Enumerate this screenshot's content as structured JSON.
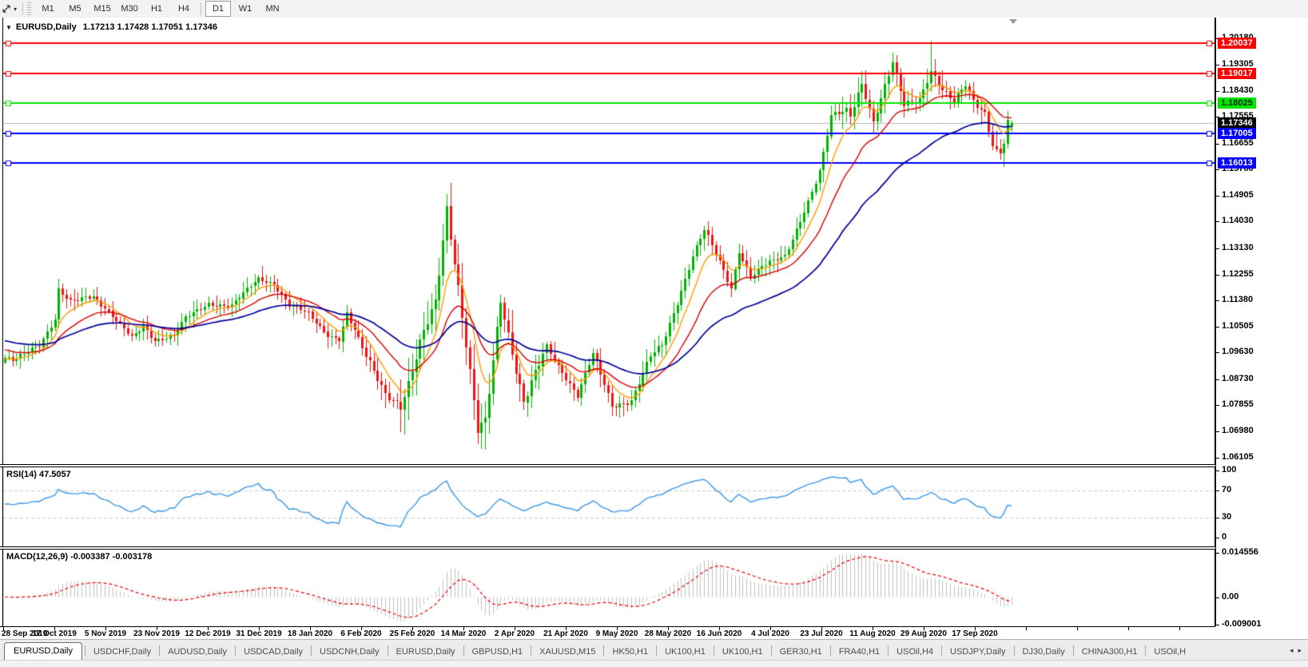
{
  "toolbar": {
    "tool_caret": "▾",
    "timeframes": [
      "M1",
      "M5",
      "M15",
      "M30",
      "H1",
      "H4",
      "D1",
      "W1",
      "MN"
    ],
    "active": "D1"
  },
  "chart_header": {
    "collapse_arrow": "▼",
    "symbol": "EURUSD,Daily",
    "ohlc": "1.17213 1.17428 1.17051 1.17346"
  },
  "chart_data": {
    "type": "candlestick",
    "symbol": "EURUSD",
    "period": "Daily",
    "last_bar": {
      "open": 1.17213,
      "high": 1.17428,
      "low": 1.17051,
      "close": 1.17346
    },
    "visible_price_range": {
      "top": 1.2089,
      "bottom": 1.0588
    },
    "bars_visible": 263,
    "colors": {
      "bull": "#00b300",
      "bear": "#f01414",
      "ma_fast": "#ff9900",
      "ma_mid": "#d40000",
      "ma_slow": "#000099",
      "price_line": "#b8b8b8"
    },
    "horizontal_lines": [
      {
        "price": 1.20037,
        "color": "#ff0000"
      },
      {
        "price": 1.19017,
        "color": "#ff0000"
      },
      {
        "price": 1.18025,
        "color": "#00e600"
      },
      {
        "price": 1.17005,
        "color": "#0000ff"
      },
      {
        "price": 1.16013,
        "color": "#0000ff"
      }
    ],
    "current_price_line": {
      "price": 1.17346,
      "color": "#b8b8b8"
    },
    "price_axis_ticks": [
      {
        "label": "1.20180",
        "value": 1.2018
      },
      {
        "label": "1.19305",
        "value": 1.19305
      },
      {
        "label": "1.18430",
        "value": 1.1843
      },
      {
        "label": "1.17555",
        "value": 1.17555
      },
      {
        "label": "1.16655",
        "value": 1.16655
      },
      {
        "label": "1.15780",
        "value": 1.1578
      },
      {
        "label": "1.14905",
        "value": 1.14905
      },
      {
        "label": "1.14030",
        "value": 1.1403
      },
      {
        "label": "1.13130",
        "value": 1.1313
      },
      {
        "label": "1.12255",
        "value": 1.12255
      },
      {
        "label": "1.11380",
        "value": 1.1138
      },
      {
        "label": "1.10505",
        "value": 1.10505
      },
      {
        "label": "1.09630",
        "value": 1.0963
      },
      {
        "label": "1.08730",
        "value": 1.0873
      },
      {
        "label": "1.07855",
        "value": 1.07855
      },
      {
        "label": "1.06980",
        "value": 1.0698
      },
      {
        "label": "1.06105",
        "value": 1.06105
      }
    ],
    "price_badges": [
      {
        "label": "1.20037",
        "value": 1.20037,
        "bg": "#ff0000",
        "fg": "#ffffff"
      },
      {
        "label": "1.19017",
        "value": 1.19017,
        "bg": "#ff0000",
        "fg": "#ffffff"
      },
      {
        "label": "1.18025",
        "value": 1.18025,
        "bg": "#00e600",
        "fg": "#002900"
      },
      {
        "label": "1.17346",
        "value": 1.17346,
        "bg": "#000000",
        "fg": "#ffffff"
      },
      {
        "label": "1.17005",
        "value": 1.17005,
        "bg": "#0000ff",
        "fg": "#ffffff"
      },
      {
        "label": "1.16013",
        "value": 1.16013,
        "bg": "#0000ff",
        "fg": "#ffffff"
      }
    ],
    "x_axis_dates": [
      "28 Sep 2019",
      "17 Oct 2019",
      "5 Nov 2019",
      "23 Nov 2019",
      "12 Dec 2019",
      "31 Dec 2019",
      "18 Jan 2020",
      "6 Feb 2020",
      "25 Feb 2020",
      "14 Mar 2020",
      "2 Apr 2020",
      "21 Apr 2020",
      "9 May 2020",
      "28 May 2020",
      "16 Jun 2020",
      "4 Jul 2020",
      "23 Jul 2020",
      "11 Aug 2020",
      "29 Aug 2020",
      "17 Sep 2020"
    ],
    "close_anchors": {
      "bar_index": [
        0,
        2,
        7,
        9,
        13,
        14,
        17,
        21,
        23,
        25,
        29,
        33,
        36,
        39,
        44,
        47,
        53,
        59,
        66,
        70,
        74,
        79,
        84,
        87,
        89,
        94,
        99,
        103,
        105,
        109,
        112,
        115,
        118,
        123,
        125,
        129,
        131,
        135,
        141,
        149,
        153,
        158,
        163,
        168,
        171,
        175,
        179,
        182,
        189,
        191,
        194,
        197,
        203,
        207,
        212,
        215,
        219,
        220,
        223,
        226,
        228,
        231,
        234,
        238,
        241,
        244,
        247,
        250,
        252,
        255,
        257,
        259,
        260,
        261,
        262
      ],
      "close": [
        1.094,
        1.0932,
        1.0979,
        1.0992,
        1.1073,
        1.117,
        1.113,
        1.1152,
        1.1154,
        1.1128,
        1.1068,
        1.101,
        1.1052,
        1.1008,
        1.1018,
        1.1077,
        1.113,
        1.112,
        1.1212,
        1.1196,
        1.1122,
        1.109,
        1.1023,
        1.1009,
        1.1094,
        1.0946,
        1.0831,
        1.0786,
        1.0851,
        1.1026,
        1.1134,
        1.1456,
        1.1184,
        1.0692,
        1.0727,
        1.1147,
        1.1031,
        1.0791,
        1.098,
        1.0821,
        1.0955,
        1.0783,
        1.0805,
        1.0949,
        1.0984,
        1.1134,
        1.1292,
        1.1375,
        1.1177,
        1.1308,
        1.1219,
        1.1251,
        1.1284,
        1.1411,
        1.157,
        1.1752,
        1.1778,
        1.1762,
        1.1873,
        1.1739,
        1.1813,
        1.1932,
        1.1797,
        1.1822,
        1.1911,
        1.184,
        1.1801,
        1.1867,
        1.1815,
        1.1772,
        1.1659,
        1.1631,
        1.1664,
        1.1742,
        1.17346
      ]
    },
    "volatility_segments": [
      [
        0,
        93,
        1.0
      ],
      [
        94,
        102,
        1.5
      ],
      [
        103,
        140,
        2.3
      ],
      [
        141,
        175,
        1.25
      ],
      [
        176,
        214,
        1.1
      ],
      [
        215,
        262,
        1.45
      ]
    ],
    "wick_overrides": [
      {
        "bar": 115,
        "high": 1.1495
      },
      {
        "bar": 241,
        "high": 1.2011
      },
      {
        "bar": 125,
        "low": 1.0636
      },
      {
        "bar": 259,
        "low": 1.1612
      }
    ],
    "moving_averages": [
      {
        "method": "ema",
        "period": 8,
        "color": "#ff9900",
        "init": 1.094
      },
      {
        "method": "ema",
        "period": 20,
        "color": "#d40000",
        "init": 1.0975
      },
      {
        "method": "ema",
        "period": 46,
        "color": "#000099",
        "init": 1.1005
      }
    ],
    "indicators": {
      "rsi": {
        "label": "RSI(14) 47.5057",
        "period": 14,
        "current": 47.5057,
        "color": "#3a96e8",
        "levels": [
          70,
          30
        ],
        "level_color": "#c8c8c8",
        "axis": [
          {
            "label": "100",
            "value": 100
          },
          {
            "label": "70",
            "value": 70
          },
          {
            "label": "30",
            "value": 30
          },
          {
            "label": "0",
            "value": 0
          }
        ]
      },
      "macd": {
        "label": "MACD(12,26,9) -0.003387 -0.003178",
        "fast_ema": 12,
        "slow_ema": 26,
        "signal_period": 9,
        "current_main": -0.003387,
        "current_signal": -0.003178,
        "histogram_color": "#c0c0c0",
        "signal_color": "#e60000",
        "axis": [
          {
            "label": "0.014556",
            "value": 0.014556
          },
          {
            "label": "0.00",
            "value": 0
          },
          {
            "label": "-0.009001",
            "value": -0.009001
          }
        ]
      }
    }
  },
  "tab_bar": {
    "scroll_left": "◂",
    "scroll_right": "▸",
    "active_index": 0,
    "tabs": [
      "EURUSD,Daily",
      "USDCHF,Daily",
      "AUDUSD,Daily",
      "USDCAD,Daily",
      "USDCNH,Daily",
      "EURUSD,Daily",
      "GBPUSD,H1",
      "XAUUSD,M15",
      "HK50,H1",
      "UK100,H1",
      "UK100,H1",
      "GER30,H1",
      "FRA40,H1",
      "USOil,H4",
      "USDJPY,Daily",
      "DJ30,Daily",
      "CHINA300,H1",
      "USOil,H"
    ]
  }
}
